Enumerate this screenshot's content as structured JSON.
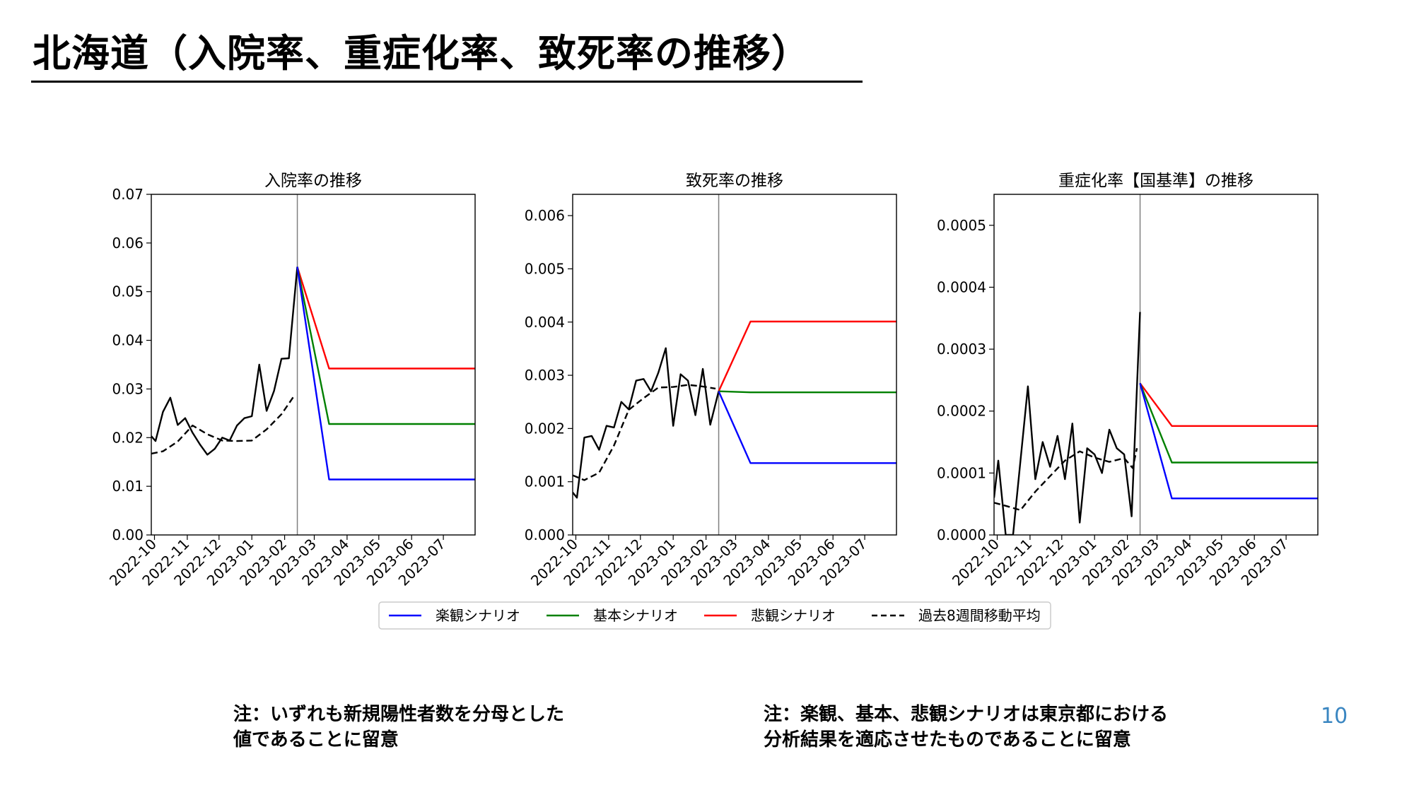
{
  "slide": {
    "title": "北海道（入院率、重症化率、致死率の推移）",
    "page_number": "10",
    "note_left": [
      "注：いずれも新規陽性者数を分母とした",
      "値であることに留意"
    ],
    "note_right": [
      "注：楽観、基本、悲観シナリオは東京都における",
      "分析結果を適応させたものであることに留意"
    ]
  },
  "legend": {
    "entries": [
      {
        "label": "楽観シナリオ",
        "color": "#0000ff",
        "style": "solid"
      },
      {
        "label": "基本シナリオ",
        "color": "#008000",
        "style": "solid"
      },
      {
        "label": "悲観シナリオ",
        "color": "#ff0000",
        "style": "solid"
      },
      {
        "label": "過去8週間移動平均",
        "color": "#000000",
        "style": "dashed"
      }
    ]
  },
  "chart_data": [
    {
      "type": "line",
      "title": "入院率の推移",
      "x_ticks": [
        "2022-10",
        "2022-11",
        "2022-12",
        "2023-01",
        "2023-02",
        "2023-03",
        "2023-04",
        "2023-05",
        "2023-06",
        "2023-07"
      ],
      "xlim": [
        "2022-09-28",
        "2023-07-31"
      ],
      "ylim": [
        0,
        0.07
      ],
      "y_ticks": [
        "0.00",
        "0.01",
        "0.02",
        "0.03",
        "0.04",
        "0.05",
        "0.06",
        "0.07"
      ],
      "y_tick_values": [
        0,
        0.01,
        0.02,
        0.03,
        0.04,
        0.05,
        0.06,
        0.07
      ],
      "cutoff": "2023-02-13",
      "series": [
        {
          "name": "observed",
          "color": "#000000",
          "style": "solid",
          "x": [
            "2022-09-28",
            "2022-10-02",
            "2022-10-09",
            "2022-10-16",
            "2022-10-23",
            "2022-10-30",
            "2022-11-06",
            "2022-11-13",
            "2022-11-20",
            "2022-11-27",
            "2022-12-04",
            "2022-12-11",
            "2022-12-18",
            "2022-12-25",
            "2023-01-01",
            "2023-01-08",
            "2023-01-15",
            "2023-01-22",
            "2023-01-29",
            "2023-02-05",
            "2023-02-13"
          ],
          "y": [
            0.0203,
            0.0193,
            0.0253,
            0.0282,
            0.0226,
            0.024,
            0.021,
            0.0186,
            0.0165,
            0.0177,
            0.02,
            0.0194,
            0.0225,
            0.024,
            0.0244,
            0.035,
            0.0255,
            0.0296,
            0.0362,
            0.0363,
            0.0551
          ]
        },
        {
          "name": "過去8週間移動平均",
          "color": "#000000",
          "style": "dashed",
          "x": [
            "2022-09-28",
            "2022-10-09",
            "2022-10-23",
            "2022-11-06",
            "2022-11-20",
            "2022-12-04",
            "2022-12-18",
            "2023-01-01",
            "2023-01-15",
            "2023-01-29",
            "2023-02-10"
          ],
          "y": [
            0.0167,
            0.0172,
            0.0192,
            0.0225,
            0.0207,
            0.0194,
            0.0193,
            0.0194,
            0.0217,
            0.0248,
            0.0286
          ]
        },
        {
          "name": "悲観シナリオ",
          "color": "#ff0000",
          "style": "solid",
          "x": [
            "2023-02-13",
            "2023-03-15",
            "2023-07-31"
          ],
          "y": [
            0.0551,
            0.0342,
            0.0342
          ]
        },
        {
          "name": "基本シナリオ",
          "color": "#008000",
          "style": "solid",
          "x": [
            "2023-02-13",
            "2023-03-15",
            "2023-07-31"
          ],
          "y": [
            0.0551,
            0.0228,
            0.0228
          ]
        },
        {
          "name": "楽観シナリオ",
          "color": "#0000ff",
          "style": "solid",
          "x": [
            "2023-02-13",
            "2023-03-15",
            "2023-07-31"
          ],
          "y": [
            0.0551,
            0.0114,
            0.0114
          ]
        }
      ]
    },
    {
      "type": "line",
      "title": "致死率の推移",
      "x_ticks": [
        "2022-10",
        "2022-11",
        "2022-12",
        "2023-01",
        "2023-02",
        "2023-03",
        "2023-04",
        "2023-05",
        "2023-06",
        "2023-07"
      ],
      "xlim": [
        "2022-09-28",
        "2023-07-31"
      ],
      "ylim": [
        0,
        0.0064
      ],
      "y_ticks": [
        "0.000",
        "0.001",
        "0.002",
        "0.003",
        "0.004",
        "0.005",
        "0.006"
      ],
      "y_tick_values": [
        0,
        0.001,
        0.002,
        0.003,
        0.004,
        0.005,
        0.006
      ],
      "cutoff": "2023-02-13",
      "series": [
        {
          "name": "observed",
          "color": "#000000",
          "style": "solid",
          "x": [
            "2022-09-28",
            "2022-10-02",
            "2022-10-09",
            "2022-10-16",
            "2022-10-23",
            "2022-10-30",
            "2022-11-06",
            "2022-11-13",
            "2022-11-20",
            "2022-11-27",
            "2022-12-04",
            "2022-12-11",
            "2022-12-18",
            "2022-12-25",
            "2023-01-01",
            "2023-01-08",
            "2023-01-15",
            "2023-01-22",
            "2023-01-29",
            "2023-02-05",
            "2023-02-13"
          ],
          "y": [
            0.0008,
            0.0007,
            0.00183,
            0.00186,
            0.0016,
            0.00205,
            0.00202,
            0.0025,
            0.00236,
            0.0029,
            0.00293,
            0.0027,
            0.00305,
            0.00351,
            0.00205,
            0.00302,
            0.0029,
            0.00225,
            0.00312,
            0.00207,
            0.0027
          ]
        },
        {
          "name": "過去8週間移動平均",
          "color": "#000000",
          "style": "dashed",
          "x": [
            "2022-09-28",
            "2022-10-09",
            "2022-10-23",
            "2022-11-06",
            "2022-11-20",
            "2022-12-04",
            "2022-12-18",
            "2023-01-01",
            "2023-01-15",
            "2023-01-29",
            "2023-02-10"
          ],
          "y": [
            0.00112,
            0.00103,
            0.00117,
            0.00168,
            0.00235,
            0.00257,
            0.00277,
            0.00278,
            0.00282,
            0.00279,
            0.00275
          ]
        },
        {
          "name": "悲観シナリオ",
          "color": "#ff0000",
          "style": "solid",
          "x": [
            "2023-02-13",
            "2023-03-15",
            "2023-07-31"
          ],
          "y": [
            0.0027,
            0.00401,
            0.00401
          ]
        },
        {
          "name": "基本シナリオ",
          "color": "#008000",
          "style": "solid",
          "x": [
            "2023-02-13",
            "2023-03-15",
            "2023-07-31"
          ],
          "y": [
            0.0027,
            0.00268,
            0.00268
          ]
        },
        {
          "name": "楽観シナリオ",
          "color": "#0000ff",
          "style": "solid",
          "x": [
            "2023-02-13",
            "2023-03-15",
            "2023-07-31"
          ],
          "y": [
            0.0027,
            0.00135,
            0.00135
          ]
        }
      ]
    },
    {
      "type": "line",
      "title": "重症化率【国基準】の推移",
      "x_ticks": [
        "2022-10",
        "2022-11",
        "2022-12",
        "2023-01",
        "2023-02",
        "2023-03",
        "2023-04",
        "2023-05",
        "2023-06",
        "2023-07"
      ],
      "xlim": [
        "2022-09-28",
        "2023-07-31"
      ],
      "ylim": [
        0,
        0.00055
      ],
      "y_ticks": [
        "0.0000",
        "0.0001",
        "0.0002",
        "0.0003",
        "0.0004",
        "0.0005"
      ],
      "y_tick_values": [
        0,
        0.0001,
        0.0002,
        0.0003,
        0.0004,
        0.0005
      ],
      "cutoff": "2023-02-13",
      "series": [
        {
          "name": "observed",
          "color": "#000000",
          "style": "solid",
          "x": [
            "2022-09-28",
            "2022-10-02",
            "2022-10-09",
            "2022-10-16",
            "2022-10-23",
            "2022-10-30",
            "2022-11-06",
            "2022-11-13",
            "2022-11-20",
            "2022-11-27",
            "2022-12-04",
            "2022-12-11",
            "2022-12-18",
            "2022-12-25",
            "2023-01-01",
            "2023-01-08",
            "2023-01-15",
            "2023-01-22",
            "2023-01-29",
            "2023-02-05",
            "2023-02-13"
          ],
          "y": [
            6e-05,
            0.00012,
            0.0,
            0.0,
            0.00012,
            0.00024,
            9e-05,
            0.00015,
            0.00011,
            0.00016,
            9e-05,
            0.00018,
            2e-05,
            0.00014,
            0.00013,
            0.0001,
            0.00017,
            0.00014,
            0.00013,
            3e-05,
            0.00036
          ]
        },
        {
          "name": "過去8週間移動平均",
          "color": "#000000",
          "style": "dashed",
          "x": [
            "2022-09-28",
            "2022-10-09",
            "2022-10-23",
            "2022-11-06",
            "2022-11-20",
            "2022-12-04",
            "2022-12-18",
            "2023-01-01",
            "2023-01-15",
            "2023-01-29",
            "2023-02-06",
            "2023-02-10"
          ],
          "y": [
            5.2e-05,
            4.7e-05,
            4e-05,
            7e-05,
            9.5e-05,
            0.00012,
            0.000135,
            0.000125,
            0.000118,
            0.000124,
            0.000108,
            0.00014
          ]
        },
        {
          "name": "悲観シナリオ",
          "color": "#ff0000",
          "style": "solid",
          "x": [
            "2023-02-13",
            "2023-03-15",
            "2023-07-31"
          ],
          "y": [
            0.000245,
            0.000176,
            0.000176
          ]
        },
        {
          "name": "基本シナリオ",
          "color": "#008000",
          "style": "solid",
          "x": [
            "2023-02-13",
            "2023-03-15",
            "2023-07-31"
          ],
          "y": [
            0.000245,
            0.000117,
            0.000117
          ]
        },
        {
          "name": "楽観シナリオ",
          "color": "#0000ff",
          "style": "solid",
          "x": [
            "2023-02-13",
            "2023-03-15",
            "2023-07-31"
          ],
          "y": [
            0.000245,
            5.9e-05,
            5.9e-05
          ]
        }
      ]
    }
  ]
}
